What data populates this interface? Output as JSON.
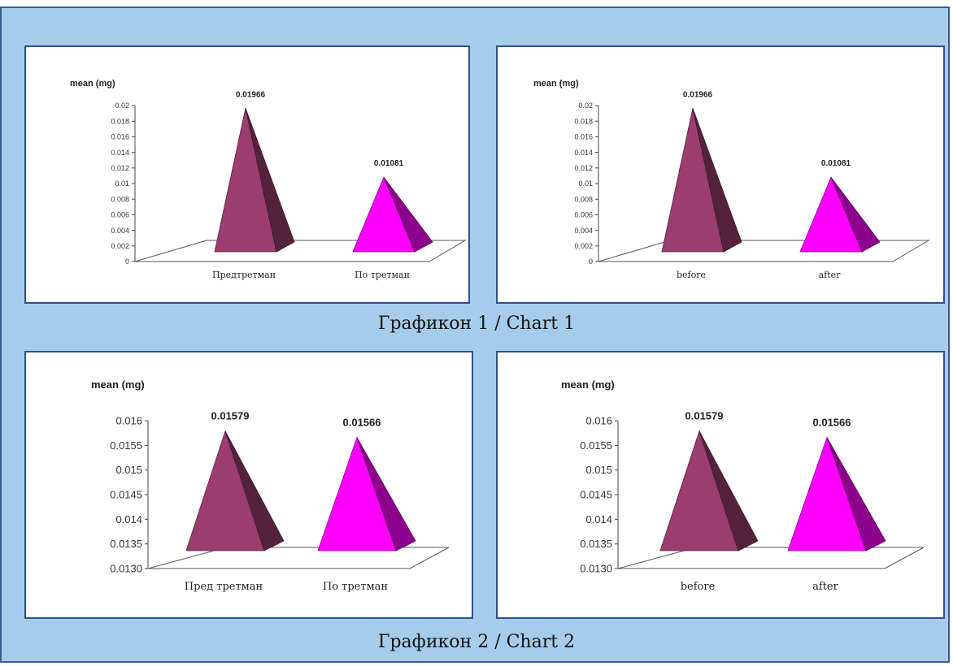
{
  "captions": [
    "Графикон 1 / Chart 1",
    "Графикон 2 / Chart 2"
  ],
  "colors": {
    "background": "#a5cdeb",
    "panel_border": "#2f4f8f",
    "series_before": "#9b3d6e",
    "series_after": "#ff00ff"
  },
  "chart_data": [
    {
      "type": "bar",
      "shape": "pyramid-3d",
      "ylabel": "mean (mg)",
      "ylim": [
        0,
        0.02
      ],
      "yticks": [
        "0.02",
        "0.018",
        "0.016",
        "0.014",
        "0.012",
        "0.01",
        "0.008",
        "0.006",
        "0.004",
        "0.002",
        "0"
      ],
      "categories": [
        "Предтретман",
        "По третман"
      ],
      "values": [
        0.01966,
        0.01081
      ],
      "data_labels": [
        "0.01966",
        "0.01081"
      ]
    },
    {
      "type": "bar",
      "shape": "pyramid-3d",
      "ylabel": "mean (mg)",
      "ylim": [
        0,
        0.02
      ],
      "yticks": [
        "0.02",
        "0.018",
        "0.016",
        "0.014",
        "0.012",
        "0.01",
        "0.008",
        "0.006",
        "0.004",
        "0.002",
        "0"
      ],
      "categories": [
        "before",
        "after"
      ],
      "values": [
        0.01966,
        0.01081
      ],
      "data_labels": [
        "0.01966",
        "0.01081"
      ]
    },
    {
      "type": "bar",
      "shape": "pyramid-3d",
      "ylabel": "mean (mg)",
      "ylim": [
        0.013,
        0.016
      ],
      "yticks": [
        "0.016",
        "0.0155",
        "0.015",
        "0.0145",
        "0.014",
        "0.0135",
        "0.0130"
      ],
      "categories": [
        "Пред третман",
        "По третман"
      ],
      "values": [
        0.01579,
        0.01566
      ],
      "data_labels": [
        "0.01579",
        "0.01566"
      ]
    },
    {
      "type": "bar",
      "shape": "pyramid-3d",
      "ylabel": "mean (mg)",
      "ylim": [
        0.013,
        0.016
      ],
      "yticks": [
        "0.016",
        "0.0155",
        "0.015",
        "0.0145",
        "0.014",
        "0.0135",
        "0.0130"
      ],
      "categories": [
        "before",
        "after"
      ],
      "values": [
        0.01579,
        0.01566
      ],
      "data_labels": [
        "0.01579",
        "0.01566"
      ]
    }
  ]
}
